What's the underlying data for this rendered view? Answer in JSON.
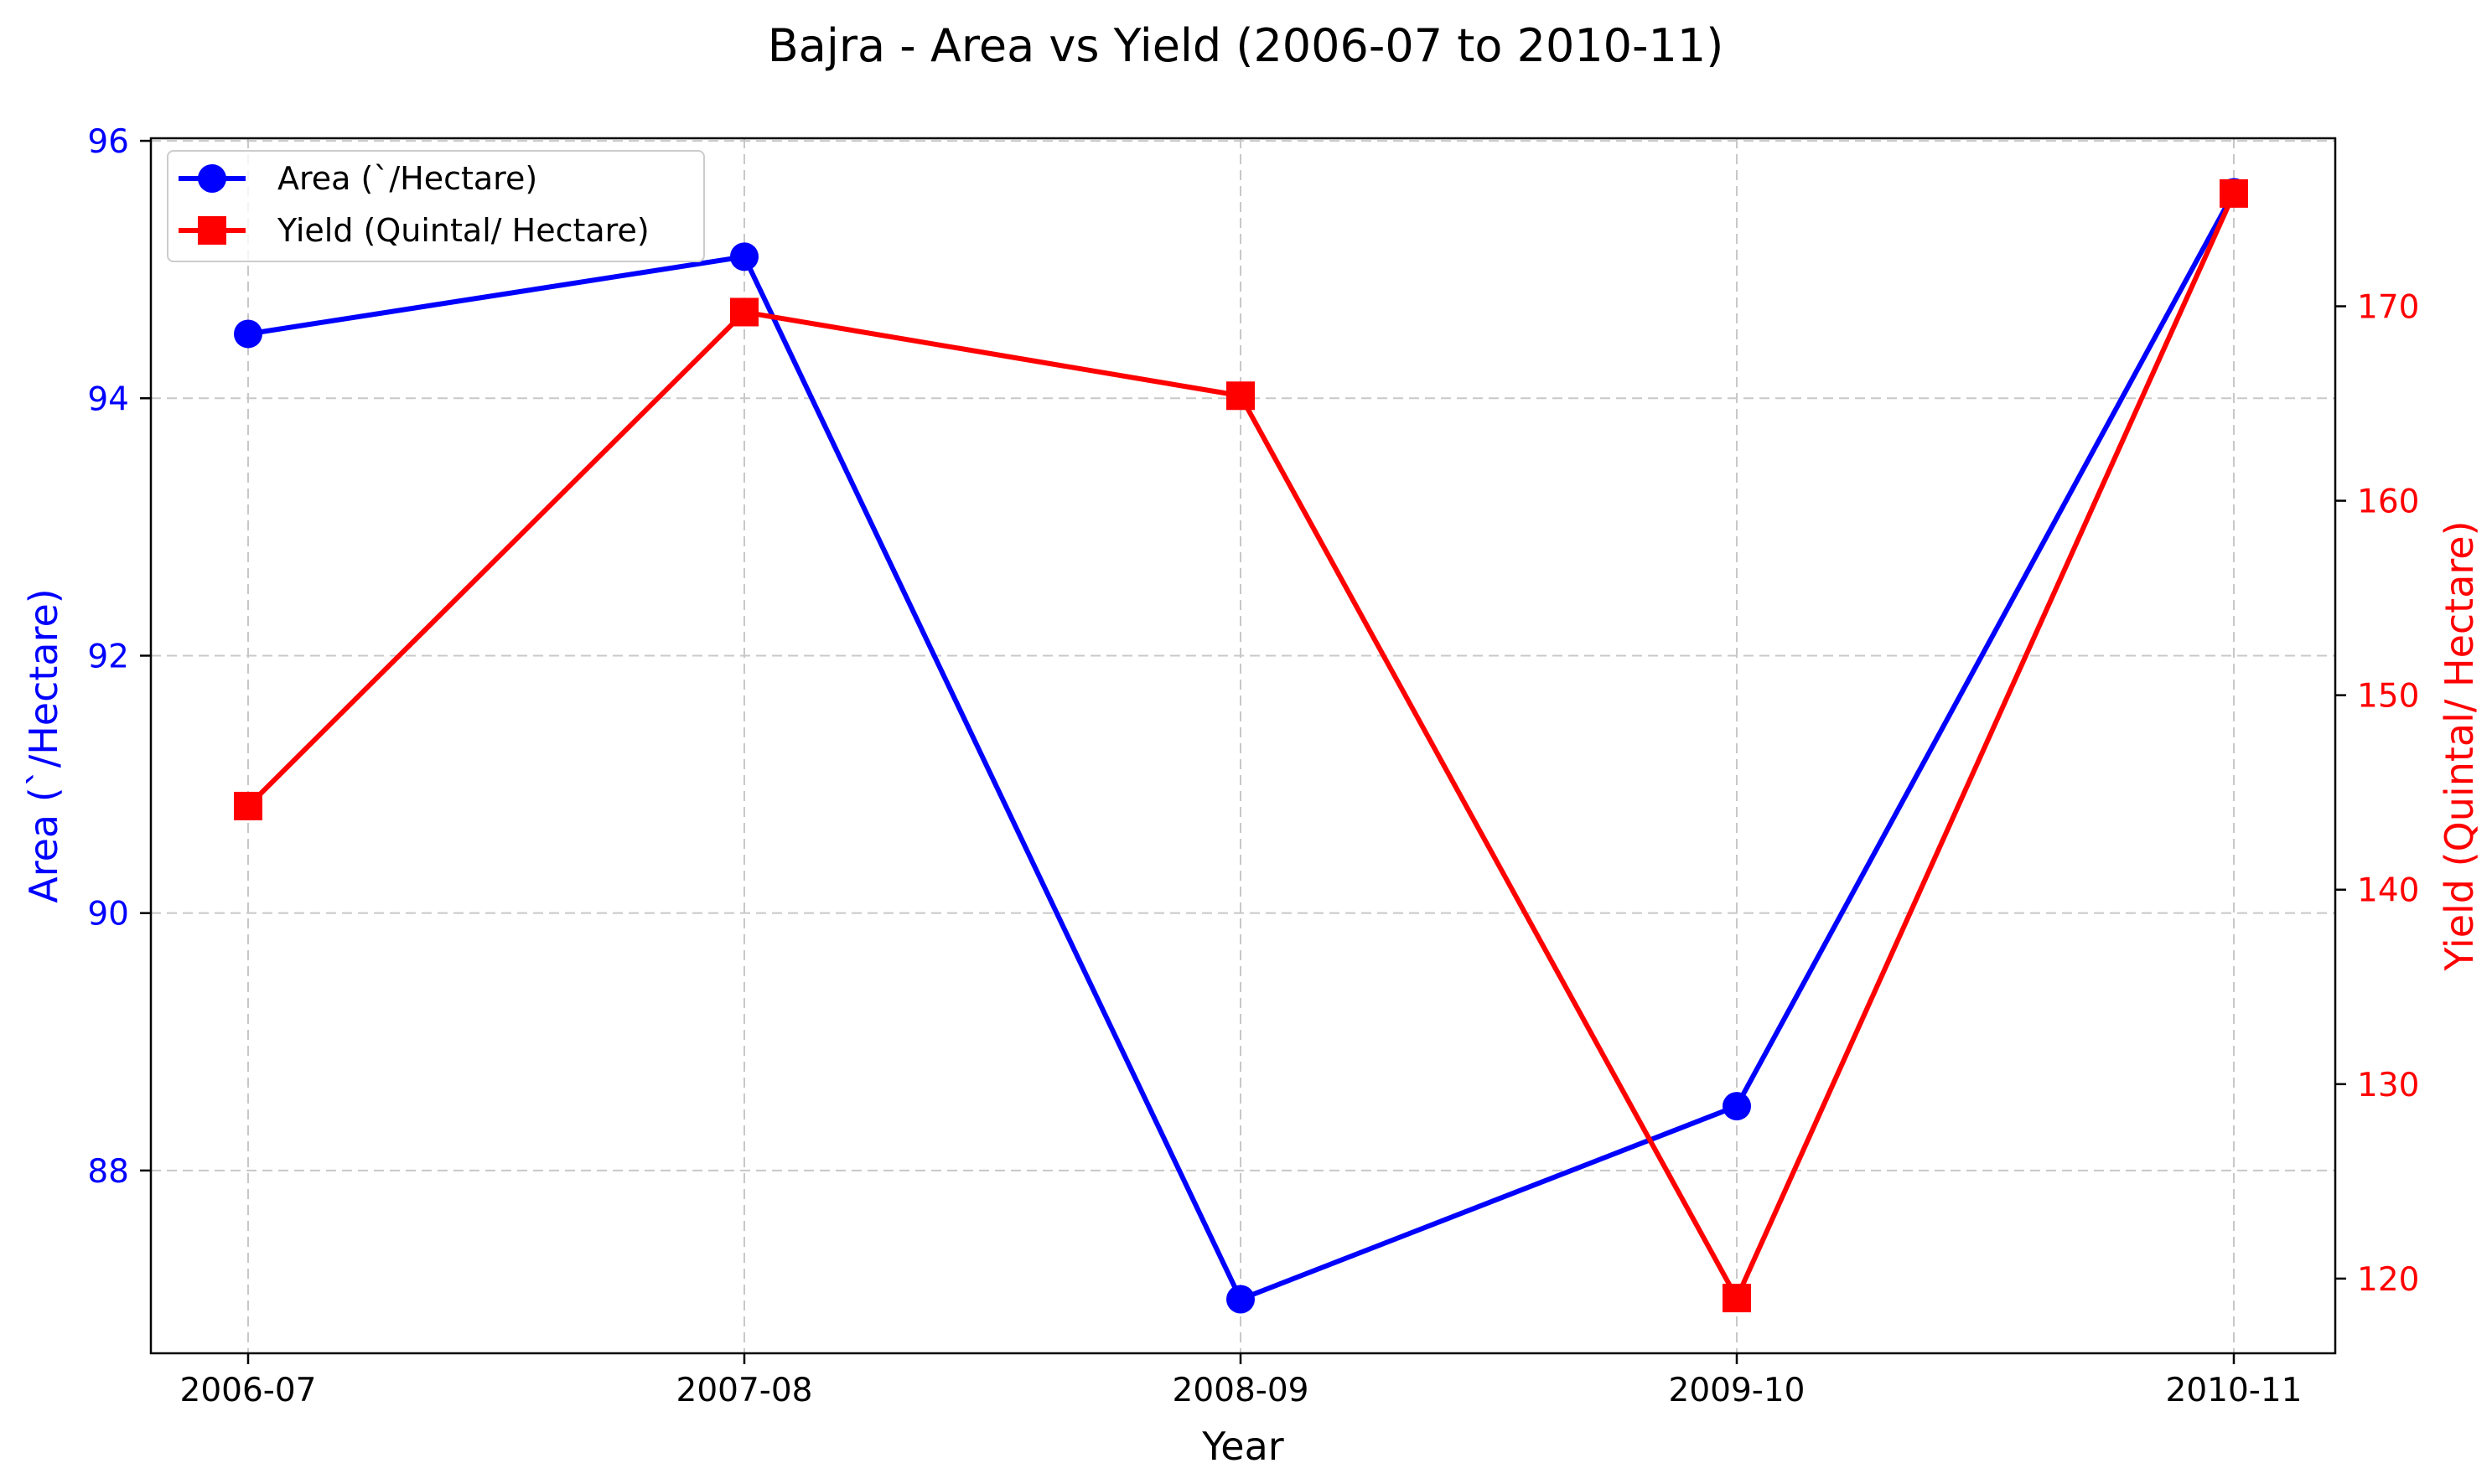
{
  "chart_data": {
    "type": "line",
    "title": "Bajra - Area vs Yield (2006-07 to 2010-11)",
    "xlabel": "Year",
    "ylabel_left": "Area (`/Hectare)",
    "ylabel_right": "Yield (Quintal/ Hectare)",
    "categories": [
      "2006-07",
      "2007-08",
      "2008-09",
      "2009-10",
      "2010-11"
    ],
    "series": [
      {
        "name": "Area (`/Hectare)",
        "axis": "left",
        "color": "#0000ff",
        "marker": "circle",
        "values": [
          94.5,
          95.1,
          87.0,
          88.5,
          95.6
        ]
      },
      {
        "name": "Yield (Quintal/ Hectare)",
        "axis": "right",
        "color": "#ff0000",
        "marker": "square",
        "values": [
          144.3,
          169.7,
          165.4,
          119.0,
          175.8
        ]
      }
    ],
    "ylim_left": [
      86.58,
      96.02
    ],
    "ylim_right": [
      116.16,
      178.64
    ],
    "yticks_left": [
      "88",
      "90",
      "92",
      "94",
      "96"
    ],
    "yticks_right": [
      "120",
      "130",
      "140",
      "150",
      "160",
      "170"
    ],
    "grid": true,
    "grid_style": "dashed",
    "legend_position": "top-left",
    "left_axis_color": "#0000ff",
    "right_axis_color": "#ff0000"
  }
}
